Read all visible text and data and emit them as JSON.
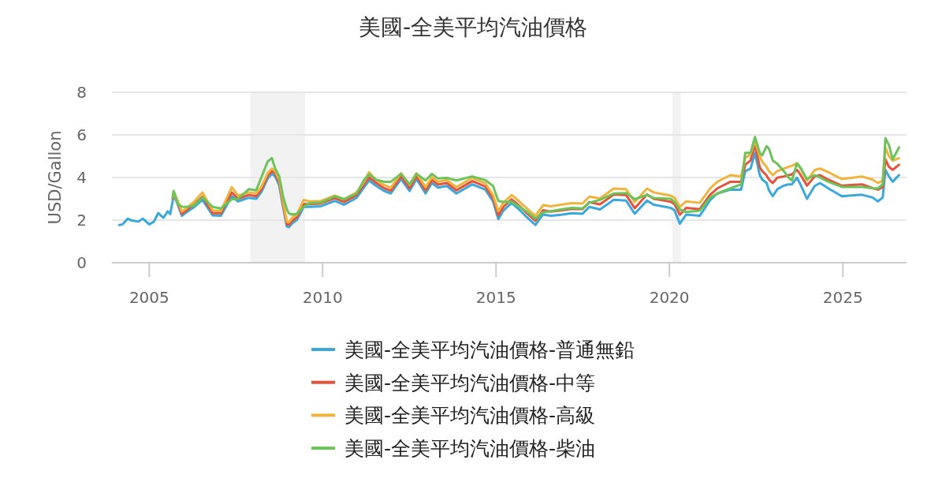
{
  "chart_data": {
    "type": "line",
    "title": "美國-全美平均汽油價格",
    "ylabel": "USD/Gallon",
    "x": [
      "2004-02-20",
      "2004-03-25",
      "2004-05-20",
      "2004-07-01",
      "2004-09-10",
      "2004-10-25",
      "2005-01-01",
      "2005-02-20",
      "2005-04-05",
      "2005-05-30",
      "2005-07-15",
      "2005-08-10",
      "2005-09-05",
      "2005-09-15",
      "2005-10-30",
      "2005-12-10",
      "2006-02-01",
      "2006-04-15",
      "2006-07-15",
      "2006-11-01",
      "2007-01-25",
      "2007-05-20",
      "2007-07-25",
      "2007-11-15",
      "2008-02-01",
      "2008-03-25",
      "2008-06-01",
      "2008-07-15",
      "2008-08-20",
      "2008-10-01",
      "2008-11-10",
      "2008-12-20",
      "2009-01-10",
      "2009-02-15",
      "2009-04-05",
      "2009-06-15",
      "2009-08-15",
      "2009-12-15",
      "2010-05-10",
      "2010-08-15",
      "2010-12-25",
      "2011-03-15",
      "2011-05-05",
      "2011-07-15",
      "2011-10-10",
      "2011-12-20",
      "2012-04-05",
      "2012-07-05",
      "2012-09-15",
      "2012-12-20",
      "2013-02-25",
      "2013-04-30",
      "2013-08-01",
      "2013-11-10",
      "2014-04-25",
      "2014-09-10",
      "2014-12-01",
      "2015-01-25",
      "2015-03-20",
      "2015-06-15",
      "2015-09-01",
      "2015-11-20",
      "2016-02-20",
      "2016-05-10",
      "2016-08-01",
      "2016-11-15",
      "2017-03-10",
      "2017-06-30",
      "2017-09-10",
      "2017-12-31",
      "2018-05-25",
      "2018-10-01",
      "2019-01-01",
      "2019-05-10",
      "2019-07-20",
      "2019-10-20",
      "2020-01-15",
      "2020-02-25",
      "2020-04-20",
      "2020-06-25",
      "2020-11-15",
      "2021-03-05",
      "2021-05-20",
      "2021-10-05",
      "2022-01-25",
      "2022-03-10",
      "2022-05-05",
      "2022-06-20",
      "2022-08-10",
      "2022-09-05",
      "2022-10-20",
      "2022-11-15",
      "2022-12-25",
      "2023-02-10",
      "2023-04-20",
      "2023-06-10",
      "2023-07-15",
      "2023-09-05",
      "2023-10-10",
      "2023-12-20",
      "2024-03-10",
      "2024-05-05",
      "2024-08-01",
      "2024-12-20",
      "2025-07-20",
      "2025-11-10",
      "2026-01-05",
      "2026-02-25",
      "2026-03-25",
      "2026-05-01",
      "2026-06-10",
      "2026-08-15"
    ],
    "series": [
      {
        "name": "美國-全美平均汽油價格-普通無鉛",
        "color": "#3aa8db",
        "values": [
          1.77,
          1.8,
          2.07,
          1.98,
          1.93,
          2.07,
          1.8,
          1.93,
          2.33,
          2.11,
          2.41,
          2.28,
          2.9,
          3.2,
          2.7,
          2.2,
          2.38,
          2.6,
          2.95,
          2.22,
          2.2,
          3.12,
          2.88,
          3.05,
          3.0,
          3.3,
          3.95,
          4.17,
          4.05,
          3.62,
          2.63,
          1.7,
          1.67,
          1.85,
          2.01,
          2.62,
          2.62,
          2.65,
          2.9,
          2.72,
          3.05,
          3.55,
          3.86,
          3.62,
          3.37,
          3.25,
          3.93,
          3.37,
          3.93,
          3.25,
          3.74,
          3.53,
          3.6,
          3.25,
          3.68,
          3.43,
          2.88,
          2.05,
          2.45,
          2.8,
          2.5,
          2.14,
          1.77,
          2.26,
          2.2,
          2.25,
          2.32,
          2.3,
          2.62,
          2.5,
          2.95,
          2.92,
          2.3,
          2.92,
          2.72,
          2.65,
          2.57,
          2.45,
          1.83,
          2.26,
          2.2,
          2.94,
          3.25,
          3.43,
          3.43,
          4.3,
          4.42,
          5.16,
          4.11,
          3.9,
          3.75,
          3.4,
          3.12,
          3.45,
          3.62,
          3.68,
          3.68,
          3.99,
          3.7,
          3.0,
          3.6,
          3.74,
          3.49,
          3.12,
          3.19,
          3.06,
          2.88,
          3.06,
          4.36,
          4.05,
          3.8,
          4.11
        ]
      },
      {
        "name": "美國-全美平均汽油價格-中等",
        "color": "#e5533c",
        "values": [
          null,
          null,
          null,
          null,
          null,
          null,
          null,
          null,
          null,
          null,
          null,
          null,
          3.0,
          3.28,
          2.8,
          2.3,
          2.48,
          2.72,
          3.1,
          2.32,
          2.32,
          3.3,
          3.0,
          3.18,
          3.12,
          3.42,
          4.08,
          4.3,
          4.18,
          3.75,
          2.75,
          1.8,
          1.78,
          1.97,
          2.13,
          2.75,
          2.75,
          2.78,
          3.03,
          2.85,
          3.18,
          3.68,
          4.0,
          3.76,
          3.5,
          3.38,
          4.06,
          3.5,
          4.06,
          3.4,
          3.88,
          3.67,
          3.74,
          3.4,
          3.83,
          3.58,
          3.03,
          2.22,
          2.62,
          2.98,
          2.68,
          2.33,
          1.97,
          2.46,
          2.4,
          2.45,
          2.53,
          2.52,
          2.84,
          2.74,
          3.2,
          3.18,
          2.56,
          3.2,
          3.0,
          2.93,
          2.86,
          2.75,
          2.25,
          2.57,
          2.51,
          3.19,
          3.49,
          3.8,
          3.8,
          4.6,
          4.8,
          5.53,
          4.48,
          4.3,
          4.1,
          3.9,
          3.74,
          3.99,
          4.05,
          4.11,
          4.15,
          4.36,
          4.15,
          3.62,
          4.05,
          4.11,
          3.9,
          3.62,
          3.68,
          3.5,
          3.43,
          3.55,
          4.85,
          4.5,
          4.36,
          4.6
        ]
      },
      {
        "name": "美國-全美平均汽油價格-高級",
        "color": "#f0b43c",
        "values": [
          null,
          null,
          null,
          null,
          null,
          null,
          null,
          null,
          null,
          null,
          null,
          null,
          3.05,
          3.35,
          2.88,
          2.4,
          2.58,
          2.85,
          3.3,
          2.45,
          2.43,
          3.55,
          3.15,
          3.3,
          3.25,
          3.55,
          4.2,
          4.42,
          4.3,
          3.88,
          2.88,
          1.92,
          1.9,
          2.1,
          2.26,
          2.95,
          2.88,
          2.9,
          3.15,
          2.98,
          3.3,
          3.8,
          4.25,
          3.9,
          3.65,
          3.52,
          4.2,
          3.65,
          4.2,
          3.55,
          4.02,
          3.8,
          3.88,
          3.55,
          3.98,
          3.73,
          3.18,
          2.42,
          2.82,
          3.18,
          2.88,
          2.55,
          2.2,
          2.7,
          2.65,
          2.72,
          2.8,
          2.78,
          3.1,
          3.02,
          3.48,
          3.45,
          2.85,
          3.48,
          3.3,
          3.22,
          3.15,
          3.05,
          2.62,
          2.88,
          2.81,
          3.49,
          3.8,
          4.11,
          4.05,
          4.91,
          5.1,
          5.72,
          4.98,
          4.75,
          4.5,
          4.3,
          4.11,
          4.3,
          4.42,
          4.5,
          4.55,
          4.67,
          4.45,
          3.86,
          4.35,
          4.42,
          4.25,
          3.93,
          4.05,
          3.9,
          3.74,
          3.86,
          5.41,
          5.0,
          4.79,
          4.91
        ]
      },
      {
        "name": "美國-全美平均汽油價格-柴油",
        "color": "#6cc35a",
        "values": [
          null,
          null,
          null,
          null,
          null,
          null,
          null,
          null,
          null,
          null,
          null,
          null,
          3.05,
          3.37,
          2.75,
          2.63,
          2.62,
          2.68,
          3.06,
          2.62,
          2.55,
          2.98,
          3.0,
          3.45,
          3.4,
          3.99,
          4.75,
          4.91,
          4.42,
          4.05,
          3.12,
          2.5,
          2.32,
          2.26,
          2.3,
          2.62,
          2.8,
          2.82,
          3.12,
          2.98,
          3.25,
          3.9,
          4.15,
          3.9,
          3.8,
          3.8,
          4.17,
          3.68,
          4.17,
          3.86,
          4.17,
          3.95,
          3.98,
          3.86,
          4.05,
          3.88,
          3.6,
          2.9,
          2.85,
          2.86,
          2.63,
          2.4,
          2.07,
          2.36,
          2.42,
          2.5,
          2.57,
          2.55,
          2.82,
          2.95,
          3.25,
          3.27,
          2.98,
          3.18,
          3.04,
          3.02,
          3.0,
          2.85,
          2.5,
          2.38,
          2.44,
          3.06,
          3.25,
          3.49,
          3.68,
          5.16,
          5.16,
          5.9,
          5.16,
          5.04,
          5.47,
          5.35,
          4.79,
          4.65,
          4.3,
          3.99,
          3.86,
          4.67,
          4.48,
          3.93,
          4.11,
          4.0,
          3.8,
          3.56,
          3.56,
          3.49,
          3.49,
          3.68,
          5.84,
          5.53,
          4.85,
          5.41
        ]
      }
    ],
    "xlim": [
      "2003-12-05",
      "2026-11-03"
    ],
    "xticks": [
      {
        "value": "2005-01-01",
        "label": "2005"
      },
      {
        "value": "2010-01-01",
        "label": "2010"
      },
      {
        "value": "2015-01-01",
        "label": "2015"
      },
      {
        "value": "2020-01-01",
        "label": "2020"
      },
      {
        "value": "2025-01-01",
        "label": "2025"
      }
    ],
    "ylim": [
      0,
      8
    ],
    "yticks": [
      0,
      2,
      4,
      6,
      8
    ],
    "bands": [
      {
        "axis": "x",
        "from": "2007-12-01",
        "to": "2009-06-30",
        "color": "#f2f2f2"
      },
      {
        "axis": "x",
        "from": "2020-02-01",
        "to": "2020-04-30",
        "color": "#f2f2f2"
      }
    ],
    "grid": "y",
    "legend": "bottom",
    "marker": "none",
    "line_style": "solid"
  }
}
